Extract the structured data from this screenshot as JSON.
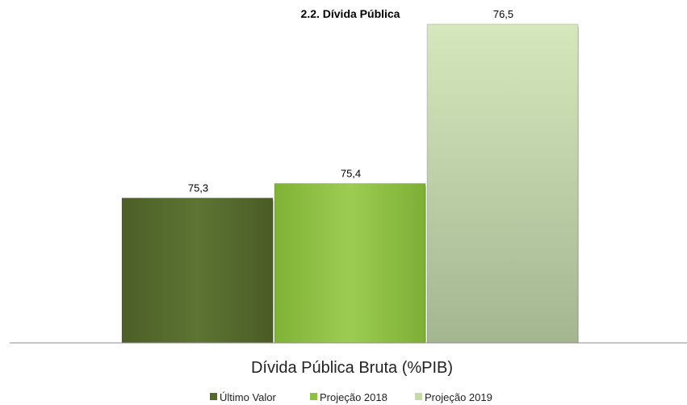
{
  "chart_data": {
    "type": "bar",
    "title": "2.2. Dívida Pública",
    "categories": [
      "Dívida Pública Bruta (%PIB)"
    ],
    "series": [
      {
        "name": "Último Valor",
        "values": [
          75.3
        ],
        "label": "75,3",
        "color": "#55692d"
      },
      {
        "name": "Projeção 2018",
        "values": [
          75.4
        ],
        "label": "75,4",
        "color": "#8dc13f"
      },
      {
        "name": "Projeção 2019",
        "values": [
          76.5
        ],
        "label": "76,5",
        "color": "#c4dba6"
      }
    ],
    "ylim": [
      74.3,
      76.5
    ],
    "grid": false,
    "legend": "bottom"
  }
}
